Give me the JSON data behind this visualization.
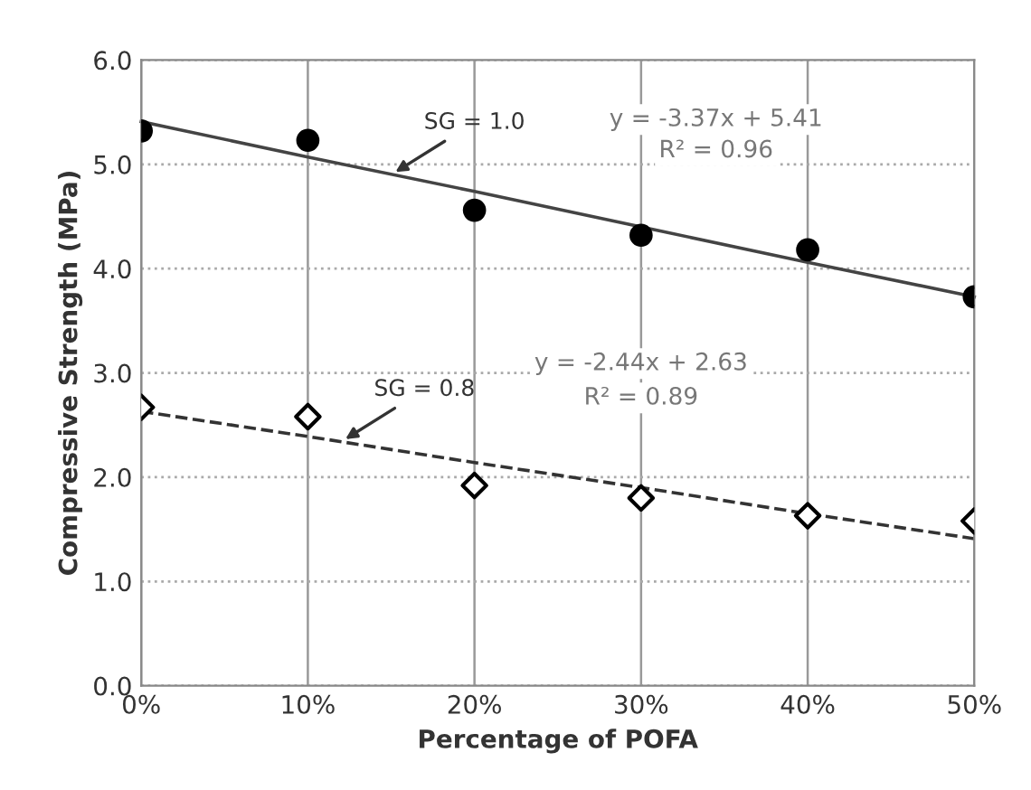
{
  "chart_data": {
    "type": "scatter",
    "xlabel": "Percentage of POFA",
    "ylabel": "Compressive Strength (MPa)",
    "x": [
      0,
      10,
      20,
      30,
      40,
      50
    ],
    "xlim": [
      0,
      50
    ],
    "xticks": [
      {
        "value": 0,
        "label": "0%"
      },
      {
        "value": 10,
        "label": "10%"
      },
      {
        "value": 20,
        "label": "20%"
      },
      {
        "value": 30,
        "label": "30%"
      },
      {
        "value": 40,
        "label": "40%"
      },
      {
        "value": 50,
        "label": "50%"
      }
    ],
    "ylim": [
      0,
      6
    ],
    "yticks": [
      {
        "value": 0,
        "label": "0.0"
      },
      {
        "value": 1,
        "label": "1.0"
      },
      {
        "value": 2,
        "label": "2.0"
      },
      {
        "value": 3,
        "label": "3.0"
      },
      {
        "value": 4,
        "label": "4.0"
      },
      {
        "value": 5,
        "label": "5.0"
      },
      {
        "value": 6,
        "label": "6.0"
      }
    ],
    "grid": true,
    "series": [
      {
        "type": "line",
        "color": "#444444",
        "values": [
          5.41,
          5.07,
          4.74,
          4.4,
          4.06,
          3.73
        ],
        "marker": "none",
        "line_style": "solid"
      },
      {
        "type": "line",
        "color": "#333333",
        "values": [
          2.63,
          2.39,
          2.14,
          1.9,
          1.65,
          1.41
        ],
        "marker": "none",
        "line_style": "dashed"
      },
      {
        "color": "#000000",
        "values": [
          5.32,
          5.23,
          4.56,
          4.32,
          4.18,
          3.73
        ],
        "marker": "circle"
      },
      {
        "color": "#ffffff",
        "values": [
          2.67,
          2.58,
          1.92,
          1.8,
          1.63,
          1.58
        ],
        "marker": "diamond"
      }
    ],
    "annotations": [
      {
        "text": "SG = 1.0",
        "x": 15,
        "y": 4.9
      },
      "y = -3.37x + 5.41",
      "R² = 0.96",
      {
        "text": "SG = 0.8",
        "x": 12,
        "y": 2.34
      },
      "y = -2.44x + 2.63",
      "R² = 0.89"
    ]
  }
}
